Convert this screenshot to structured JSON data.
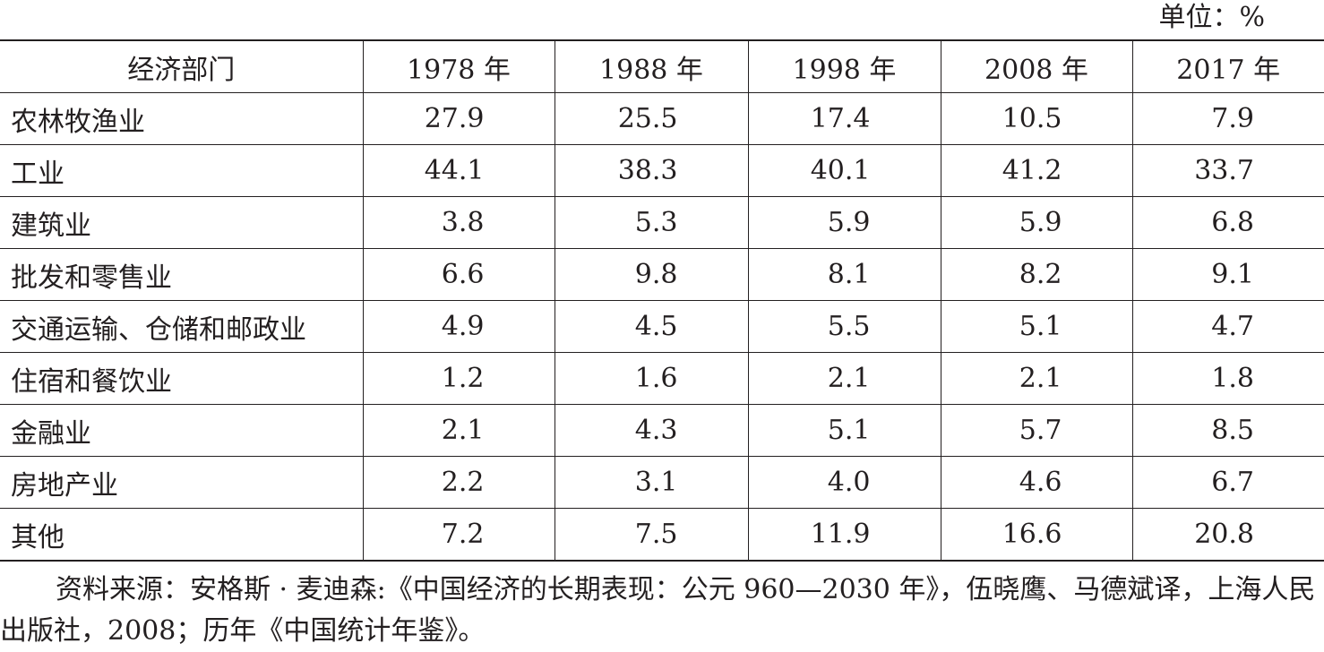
{
  "unit_label": "单位：%",
  "table": {
    "headers": [
      "经济部门",
      "1978 年",
      "1988 年",
      "1998 年",
      "2008 年",
      "2017 年"
    ],
    "rows": [
      {
        "sector": "农林牧渔业",
        "values": [
          "27.9",
          "25.5",
          "17.4",
          "10.5",
          "7.9"
        ]
      },
      {
        "sector": "工业",
        "values": [
          "44.1",
          "38.3",
          "40.1",
          "41.2",
          "33.7"
        ]
      },
      {
        "sector": "建筑业",
        "values": [
          "3.8",
          "5.3",
          "5.9",
          "5.9",
          "6.8"
        ]
      },
      {
        "sector": "批发和零售业",
        "values": [
          "6.6",
          "9.8",
          "8.1",
          "8.2",
          "9.1"
        ]
      },
      {
        "sector": "交通运输、仓储和邮政业",
        "values": [
          "4.9",
          "4.5",
          "5.5",
          "5.1",
          "4.7"
        ]
      },
      {
        "sector": "住宿和餐饮业",
        "values": [
          "1.2",
          "1.6",
          "2.1",
          "2.1",
          "1.8"
        ]
      },
      {
        "sector": "金融业",
        "values": [
          "2.1",
          "4.3",
          "5.1",
          "5.7",
          "8.5"
        ]
      },
      {
        "sector": "房地产业",
        "values": [
          "2.2",
          "3.1",
          "4.0",
          "4.6",
          "6.7"
        ]
      },
      {
        "sector": "其他",
        "values": [
          "7.2",
          "7.5",
          "11.9",
          "16.6",
          "20.8"
        ]
      }
    ]
  },
  "source_note": "资料来源：安格斯 · 麦迪森:《中国经济的长期表现：公元 960—2030 年》，伍晓鹰、马德斌译，上海人民出版社，2008；历年《中国统计年鉴》。"
}
